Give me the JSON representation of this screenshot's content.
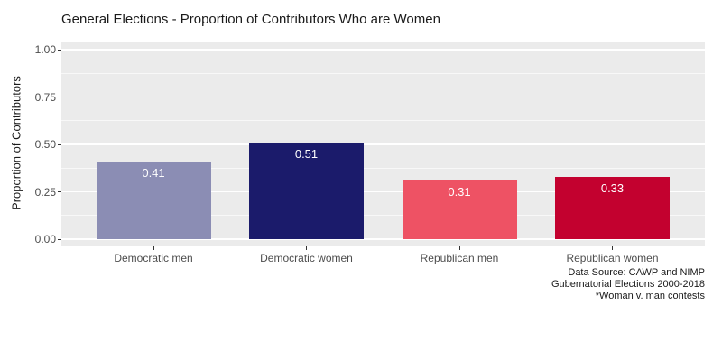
{
  "chart_data": {
    "type": "bar",
    "title": "General Elections - Proportion of Contributors Who are Women",
    "xlabel": "",
    "ylabel": "Proportion of Contributors",
    "categories": [
      "Democratic men",
      "Democratic women",
      "Republican men",
      "Republican women"
    ],
    "values": [
      0.41,
      0.51,
      0.31,
      0.33
    ],
    "bar_labels": [
      "0.41",
      "0.51",
      "0.31",
      "0.33"
    ],
    "bar_colors": [
      "#8b8db4",
      "#1b1b6b",
      "#ee5264",
      "#c3012f"
    ],
    "bar_label_color": "#ffffff",
    "ylim": [
      0,
      1.0
    ],
    "yticks": [
      0,
      0.25,
      0.5,
      0.75,
      1.0
    ],
    "ytick_labels": [
      "0.00",
      "0.25",
      "0.50",
      "0.75",
      "1.00"
    ],
    "minor_gridlines": [
      0.125,
      0.375,
      0.625,
      0.875
    ],
    "grid": "major-and-minor",
    "legend": "none",
    "panel_bg": "#ebebeb",
    "grid_color": "#ffffff",
    "tick_label_color": "#4d4d4d",
    "caption_lines": [
      "Data Source: CAWP and NIMP",
      "Gubernatorial Elections 2000-2018",
      "*Woman v. man contests"
    ]
  }
}
